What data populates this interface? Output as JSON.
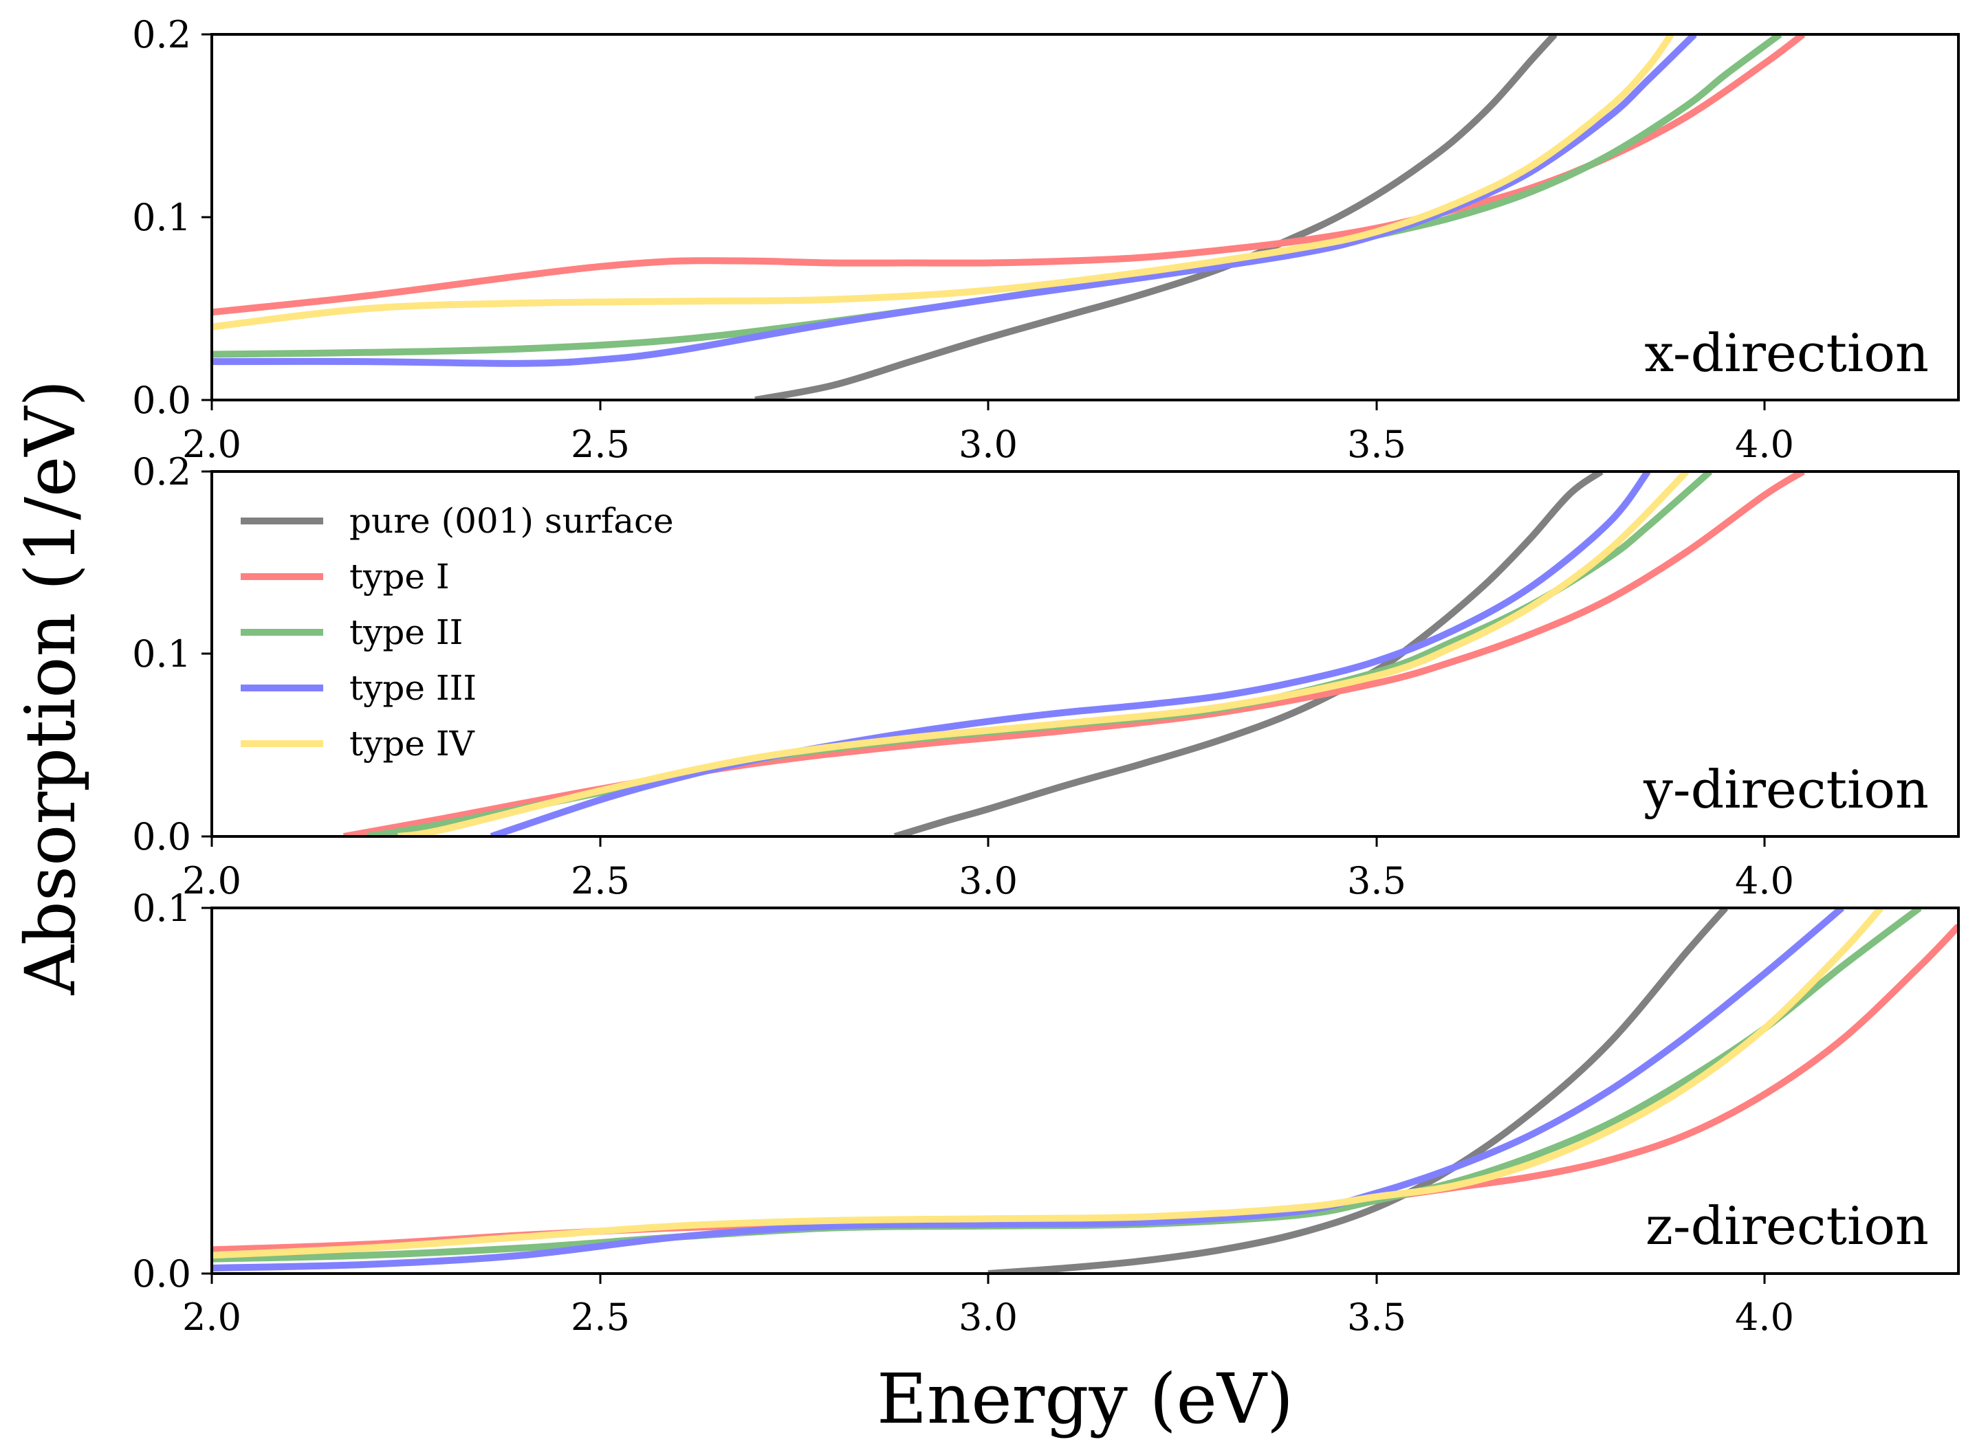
{
  "chart_data": {
    "type": "line",
    "xlabel": "Energy (eV)",
    "ylabel": "Absorption (1/eV)",
    "xlim": [
      2.0,
      4.25
    ],
    "xticks": [
      "2.0",
      "2.5",
      "3.0",
      "3.5",
      "4.0"
    ],
    "legend": {
      "location": "top-left of middle panel",
      "entries": [
        "pure (001) surface",
        "type I",
        "type II",
        "type III",
        "type IV"
      ]
    },
    "series_colors": {
      "pure (001) surface": "#808080",
      "type I": "#ff8080",
      "type II": "#7fbf7f",
      "type III": "#8080ff",
      "type IV": "#ffe680"
    },
    "panels": [
      {
        "label": "x-direction",
        "ylim": [
          0.0,
          0.2
        ],
        "yticks": [
          "0.0",
          "0.1",
          "0.2"
        ],
        "series": [
          {
            "name": "pure (001) surface",
            "x": [
              2.7,
              2.8,
              2.9,
              3.0,
              3.1,
              3.2,
              3.3,
              3.4,
              3.45,
              3.5,
              3.55,
              3.6,
              3.65,
              3.7,
              3.73
            ],
            "y": [
              0.0,
              0.008,
              0.021,
              0.034,
              0.046,
              0.058,
              0.072,
              0.09,
              0.1,
              0.112,
              0.126,
              0.142,
              0.162,
              0.186,
              0.2
            ]
          },
          {
            "name": "type I",
            "x": [
              2.0,
              2.2,
              2.4,
              2.5,
              2.6,
              2.7,
              2.8,
              2.9,
              3.0,
              3.1,
              3.2,
              3.3,
              3.4,
              3.5,
              3.6,
              3.7,
              3.8,
              3.9,
              4.0,
              4.05
            ],
            "y": [
              0.048,
              0.057,
              0.068,
              0.073,
              0.076,
              0.076,
              0.075,
              0.075,
              0.075,
              0.076,
              0.078,
              0.082,
              0.087,
              0.094,
              0.104,
              0.116,
              0.133,
              0.155,
              0.184,
              0.2
            ]
          },
          {
            "name": "type II",
            "x": [
              2.0,
              2.2,
              2.4,
              2.6,
              2.8,
              3.0,
              3.2,
              3.4,
              3.5,
              3.6,
              3.7,
              3.8,
              3.9,
              3.95,
              4.02
            ],
            "y": [
              0.025,
              0.026,
              0.028,
              0.033,
              0.043,
              0.055,
              0.068,
              0.081,
              0.09,
              0.1,
              0.114,
              0.134,
              0.161,
              0.178,
              0.2
            ]
          },
          {
            "name": "type III",
            "x": [
              2.0,
              2.2,
              2.4,
              2.5,
              2.6,
              2.8,
              3.0,
              3.2,
              3.4,
              3.5,
              3.6,
              3.7,
              3.8,
              3.85,
              3.91
            ],
            "y": [
              0.021,
              0.021,
              0.02,
              0.022,
              0.027,
              0.042,
              0.055,
              0.067,
              0.08,
              0.09,
              0.105,
              0.125,
              0.155,
              0.175,
              0.2
            ]
          },
          {
            "name": "type IV",
            "x": [
              2.0,
              2.2,
              2.4,
              2.6,
              2.8,
              3.0,
              3.2,
              3.4,
              3.5,
              3.6,
              3.7,
              3.8,
              3.85,
              3.88
            ],
            "y": [
              0.04,
              0.05,
              0.053,
              0.054,
              0.055,
              0.06,
              0.07,
              0.083,
              0.092,
              0.107,
              0.128,
              0.16,
              0.182,
              0.2
            ]
          }
        ]
      },
      {
        "label": "y-direction",
        "ylim": [
          0.0,
          0.2
        ],
        "yticks": [
          "0.0",
          "0.1",
          "0.2"
        ],
        "series": [
          {
            "name": "pure (001) surface",
            "x": [
              2.88,
              2.95,
              3.0,
              3.1,
              3.2,
              3.3,
              3.4,
              3.5,
              3.55,
              3.6,
              3.65,
              3.7,
              3.75,
              3.79
            ],
            "y": [
              0.0,
              0.009,
              0.015,
              0.028,
              0.04,
              0.053,
              0.069,
              0.091,
              0.106,
              0.123,
              0.142,
              0.164,
              0.188,
              0.2
            ]
          },
          {
            "name": "type I",
            "x": [
              2.17,
              2.3,
              2.5,
              2.7,
              2.9,
              3.1,
              3.3,
              3.5,
              3.6,
              3.7,
              3.8,
              3.9,
              4.0,
              4.05
            ],
            "y": [
              0.0,
              0.01,
              0.026,
              0.04,
              0.05,
              0.058,
              0.068,
              0.084,
              0.096,
              0.111,
              0.13,
              0.156,
              0.187,
              0.2
            ]
          },
          {
            "name": "type II",
            "x": [
              2.2,
              2.3,
              2.5,
              2.7,
              2.9,
              3.1,
              3.3,
              3.5,
              3.6,
              3.7,
              3.8,
              3.85,
              3.93
            ],
            "y": [
              0.0,
              0.007,
              0.024,
              0.042,
              0.053,
              0.061,
              0.07,
              0.09,
              0.107,
              0.127,
              0.153,
              0.17,
              0.2
            ]
          },
          {
            "name": "type III",
            "x": [
              2.36,
              2.5,
              2.6,
              2.7,
              2.8,
              2.9,
              3.0,
              3.1,
              3.2,
              3.3,
              3.4,
              3.5,
              3.6,
              3.7,
              3.8,
              3.85
            ],
            "y": [
              0.0,
              0.02,
              0.032,
              0.042,
              0.05,
              0.057,
              0.063,
              0.068,
              0.072,
              0.077,
              0.085,
              0.096,
              0.113,
              0.137,
              0.172,
              0.2
            ]
          },
          {
            "name": "type IV",
            "x": [
              2.24,
              2.3,
              2.5,
              2.7,
              2.9,
              3.1,
              3.3,
              3.5,
              3.6,
              3.7,
              3.8,
              3.9
            ],
            "y": [
              0.0,
              0.004,
              0.025,
              0.043,
              0.054,
              0.062,
              0.071,
              0.088,
              0.104,
              0.126,
              0.157,
              0.2
            ]
          }
        ]
      },
      {
        "label": "z-direction",
        "ylim": [
          0.0,
          0.1
        ],
        "yticks": [
          "0.0",
          "0.1"
        ],
        "series": [
          {
            "name": "pure (001) surface",
            "x": [
              3.0,
              3.1,
              3.2,
              3.3,
              3.4,
              3.5,
              3.6,
              3.7,
              3.8,
              3.9,
              3.95
            ],
            "y": [
              0.0,
              0.0015,
              0.0035,
              0.0065,
              0.011,
              0.018,
              0.029,
              0.044,
              0.063,
              0.088,
              0.1
            ]
          },
          {
            "name": "type I",
            "x": [
              2.0,
              2.2,
              2.4,
              2.6,
              2.8,
              3.0,
              3.2,
              3.4,
              3.5,
              3.6,
              3.7,
              3.8,
              3.9,
              4.0,
              4.1,
              4.2,
              4.25
            ],
            "y": [
              0.0065,
              0.008,
              0.0105,
              0.0125,
              0.0135,
              0.014,
              0.015,
              0.018,
              0.0205,
              0.0235,
              0.0265,
              0.031,
              0.038,
              0.049,
              0.064,
              0.084,
              0.095
            ]
          },
          {
            "name": "type II",
            "x": [
              2.0,
              2.2,
              2.4,
              2.6,
              2.8,
              3.0,
              3.2,
              3.4,
              3.5,
              3.6,
              3.7,
              3.8,
              3.9,
              4.0,
              4.1,
              4.2
            ],
            "y": [
              0.004,
              0.005,
              0.007,
              0.01,
              0.0125,
              0.013,
              0.0135,
              0.016,
              0.02,
              0.025,
              0.032,
              0.041,
              0.053,
              0.067,
              0.084,
              0.1
            ]
          },
          {
            "name": "type III",
            "x": [
              2.0,
              2.2,
              2.4,
              2.6,
              2.8,
              3.0,
              3.2,
              3.4,
              3.5,
              3.6,
              3.7,
              3.8,
              3.9,
              4.0,
              4.1
            ],
            "y": [
              0.0015,
              0.0025,
              0.005,
              0.01,
              0.013,
              0.0135,
              0.014,
              0.017,
              0.022,
              0.029,
              0.038,
              0.05,
              0.065,
              0.082,
              0.1
            ]
          },
          {
            "name": "type IV",
            "x": [
              2.0,
              2.2,
              2.4,
              2.6,
              2.8,
              3.0,
              3.2,
              3.4,
              3.5,
              3.6,
              3.7,
              3.8,
              3.9,
              4.0,
              4.1,
              4.15
            ],
            "y": [
              0.005,
              0.007,
              0.01,
              0.013,
              0.0145,
              0.015,
              0.0155,
              0.018,
              0.021,
              0.024,
              0.03,
              0.039,
              0.051,
              0.067,
              0.088,
              0.1
            ]
          }
        ]
      }
    ]
  }
}
